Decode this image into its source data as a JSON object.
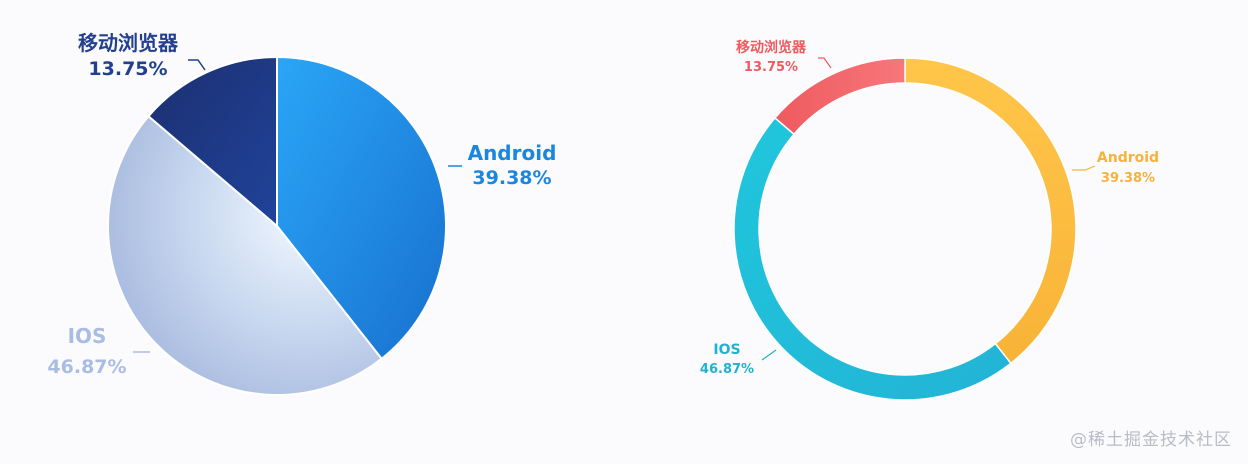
{
  "chart_data": [
    {
      "type": "pie",
      "slices": [
        {
          "label": "Android",
          "percent_text": "39.38%",
          "value": 39.38,
          "color": "#1f8ae8"
        },
        {
          "label": "IOS",
          "percent_text": "46.87%",
          "value": 46.87,
          "color": "#a7b9df"
        },
        {
          "label": "移动浏览器",
          "percent_text": "13.75%",
          "value": 13.75,
          "color": "#1d3c8f"
        }
      ]
    },
    {
      "type": "pie",
      "variant": "donut",
      "slices": [
        {
          "label": "Android",
          "percent_text": "39.38%",
          "value": 39.38,
          "color": "#fbbf3e"
        },
        {
          "label": "IOS",
          "percent_text": "46.87%",
          "value": 46.87,
          "color": "#22bdd8"
        },
        {
          "label": "移动浏览器",
          "percent_text": "13.75%",
          "value": 13.75,
          "color": "#f06466"
        }
      ]
    }
  ],
  "watermark": "@稀土掘金技术社区"
}
